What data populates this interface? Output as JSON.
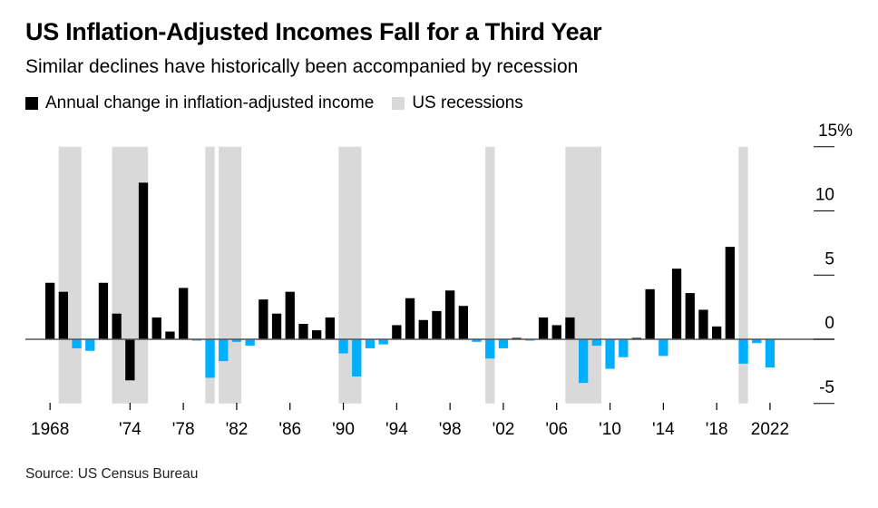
{
  "title": "US Inflation-Adjusted Incomes Fall for a Third Year",
  "subtitle": "Similar declines have historically been accompanied by recession",
  "legend": [
    {
      "label": "Annual change in inflation-adjusted income",
      "color": "#000000"
    },
    {
      "label": "US recessions",
      "color": "#d9d9d9"
    }
  ],
  "source": "Source: US Census Bureau",
  "chart_data": {
    "type": "bar",
    "title": "US Inflation-Adjusted Incomes Fall for a Third Year",
    "xlabel": "",
    "ylabel": "Annual change in inflation-adjusted income (%)",
    "ylim": [
      -5,
      15
    ],
    "y_ticks": [
      15,
      10,
      5,
      0,
      -5
    ],
    "y_tick_labels": [
      "15%",
      "10",
      "5",
      "0",
      "-5"
    ],
    "x_ticks": [
      1968,
      1974,
      1978,
      1982,
      1986,
      1990,
      1994,
      1998,
      2002,
      2006,
      2010,
      2014,
      2018,
      2022
    ],
    "x_tick_labels": [
      "1968",
      "'74",
      "'78",
      "'82",
      "'86",
      "'90",
      "'94",
      "'98",
      "'02",
      "'06",
      "'10",
      "'14",
      "'18",
      "2022"
    ],
    "start_year": 1968,
    "values": [
      4.4,
      3.7,
      -0.7,
      -0.9,
      4.4,
      2.0,
      -3.2,
      12.2,
      1.7,
      0.6,
      4.0,
      -0.1,
      -3.0,
      -1.7,
      -0.2,
      -0.5,
      3.1,
      2.0,
      3.7,
      1.2,
      0.7,
      1.7,
      -1.1,
      -2.9,
      -0.7,
      -0.4,
      1.1,
      3.2,
      1.5,
      2.2,
      3.8,
      2.6,
      -0.2,
      -1.5,
      -0.7,
      0.1,
      -0.1,
      1.7,
      1.1,
      1.7,
      -3.4,
      -0.5,
      -2.3,
      -1.4,
      0.05,
      3.9,
      -1.3,
      5.5,
      3.6,
      2.3,
      1.0,
      7.2,
      -1.9,
      -0.3,
      -2.2
    ],
    "negative_black_years": [
      1974
    ],
    "colors": {
      "positive": "#000000",
      "negative": "#00b0ff",
      "recession": "#d9d9d9",
      "axis": "#555555"
    },
    "recessions": [
      [
        1969,
        1970
      ],
      [
        1973,
        1975
      ],
      [
        1980,
        1980
      ],
      [
        1981,
        1982
      ],
      [
        1990,
        1991
      ],
      [
        2001,
        2001
      ],
      [
        2007,
        2009
      ],
      [
        2020,
        2020
      ]
    ],
    "grid": false,
    "legend_position": "top-left"
  }
}
